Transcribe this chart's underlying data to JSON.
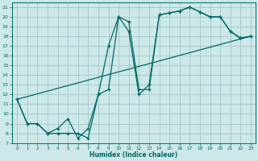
{
  "xlabel": "Humidex (Indice chaleur)",
  "bg_color": "#cce8e8",
  "grid_color": "#aacccc",
  "line_color": "#006868",
  "xlim": [
    -0.5,
    23.5
  ],
  "ylim": [
    7,
    21.5
  ],
  "xticks": [
    0,
    1,
    2,
    3,
    4,
    5,
    6,
    7,
    8,
    9,
    10,
    11,
    12,
    13,
    14,
    15,
    16,
    17,
    18,
    19,
    20,
    21,
    22,
    23
  ],
  "yticks": [
    7,
    8,
    9,
    10,
    11,
    12,
    13,
    14,
    15,
    16,
    17,
    18,
    19,
    20,
    21
  ],
  "series1_x": [
    0,
    1,
    2,
    3,
    4,
    5,
    6,
    7,
    8,
    9,
    10,
    11,
    12,
    13,
    14,
    15,
    16,
    17,
    18,
    19,
    20,
    21,
    22,
    23
  ],
  "series1_y": [
    11.5,
    9.0,
    9.0,
    8.0,
    8.5,
    9.5,
    7.5,
    8.5,
    12.0,
    17.0,
    20.0,
    19.5,
    12.5,
    12.5,
    20.2,
    20.4,
    20.6,
    21.0,
    20.5,
    20.0,
    20.0,
    18.5,
    17.8,
    18.0
  ],
  "series2_x": [
    0,
    1,
    2,
    3,
    4,
    5,
    6,
    7,
    8,
    9,
    10,
    11,
    12,
    13,
    14,
    15,
    16,
    17,
    18,
    19,
    20,
    21,
    22,
    23
  ],
  "series2_y": [
    11.5,
    9.0,
    9.0,
    8.0,
    8.0,
    8.0,
    8.0,
    7.5,
    12.0,
    12.5,
    20.0,
    18.5,
    12.0,
    13.0,
    20.2,
    20.4,
    20.6,
    21.0,
    20.5,
    20.0,
    20.0,
    18.5,
    17.8,
    18.0
  ],
  "series3_x": [
    0,
    23
  ],
  "series3_y": [
    11.5,
    18.0
  ]
}
